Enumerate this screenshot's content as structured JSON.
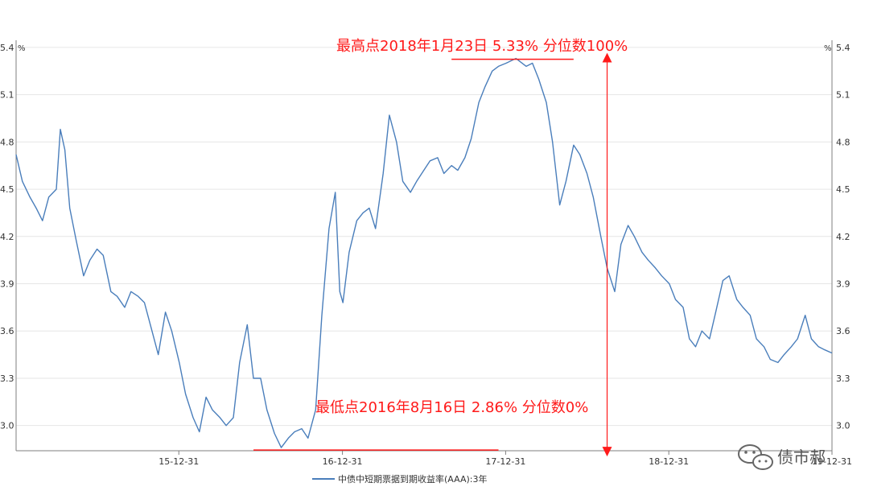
{
  "chart_data": {
    "type": "line",
    "unit_left": "%",
    "unit_right": "%",
    "ylim": [
      2.84,
      5.42
    ],
    "yticks": [
      3.0,
      3.3,
      3.6,
      3.9,
      4.2,
      4.5,
      4.8,
      5.1,
      5.4
    ],
    "ytick_labels": [
      "3.0",
      "3.3",
      "3.6",
      "3.9",
      "4.2",
      "4.5",
      "4.8",
      "5.1",
      "5.4"
    ],
    "xlim": [
      "2015-01-01",
      "2019-12-31"
    ],
    "xticks": [
      "2015-12-31",
      "2016-12-31",
      "2017-12-31",
      "2018-12-31",
      "2019-12-31"
    ],
    "xtick_labels": [
      "15-12-31",
      "16-12-31",
      "17-12-31",
      "18-12-31",
      "19-12-31"
    ],
    "color": "#4a7ebb",
    "grid": "horizontal",
    "legend": "bottom-center",
    "series": [
      {
        "name": "中债中短期票据到期收益率(AAA):3年",
        "x": [
          "2015-01-01",
          "2015-01-15",
          "2015-02-01",
          "2015-02-15",
          "2015-03-01",
          "2015-03-15",
          "2015-04-01",
          "2015-04-10",
          "2015-04-20",
          "2015-05-01",
          "2015-05-15",
          "2015-06-01",
          "2015-06-15",
          "2015-07-01",
          "2015-07-15",
          "2015-08-01",
          "2015-08-15",
          "2015-09-01",
          "2015-09-15",
          "2015-10-01",
          "2015-10-15",
          "2015-11-01",
          "2015-11-15",
          "2015-12-01",
          "2015-12-15",
          "2016-01-01",
          "2016-01-15",
          "2016-02-01",
          "2016-02-15",
          "2016-03-01",
          "2016-03-15",
          "2016-04-01",
          "2016-04-15",
          "2016-05-01",
          "2016-05-15",
          "2016-06-01",
          "2016-06-15",
          "2016-07-01",
          "2016-07-15",
          "2016-08-01",
          "2016-08-16",
          "2016-09-01",
          "2016-09-15",
          "2016-10-01",
          "2016-10-15",
          "2016-11-01",
          "2016-11-15",
          "2016-12-01",
          "2016-12-15",
          "2016-12-25",
          "2017-01-01",
          "2017-01-15",
          "2017-02-01",
          "2017-02-15",
          "2017-03-01",
          "2017-03-15",
          "2017-04-01",
          "2017-04-15",
          "2017-05-01",
          "2017-05-15",
          "2017-06-01",
          "2017-06-15",
          "2017-07-01",
          "2017-07-15",
          "2017-08-01",
          "2017-08-15",
          "2017-09-01",
          "2017-09-15",
          "2017-10-01",
          "2017-10-15",
          "2017-11-01",
          "2017-11-15",
          "2017-12-01",
          "2017-12-15",
          "2018-01-01",
          "2018-01-23",
          "2018-02-15",
          "2018-03-01",
          "2018-03-15",
          "2018-04-01",
          "2018-04-15",
          "2018-05-01",
          "2018-05-15",
          "2018-06-01",
          "2018-06-15",
          "2018-07-01",
          "2018-07-15",
          "2018-08-01",
          "2018-08-15",
          "2018-09-01",
          "2018-09-15",
          "2018-10-01",
          "2018-10-15",
          "2018-11-01",
          "2018-11-15",
          "2018-12-01",
          "2018-12-15",
          "2019-01-01",
          "2019-01-15",
          "2019-02-01",
          "2019-02-15",
          "2019-03-01",
          "2019-03-15",
          "2019-04-01",
          "2019-04-15",
          "2019-05-01",
          "2019-05-15",
          "2019-06-01",
          "2019-06-15",
          "2019-07-01",
          "2019-07-15",
          "2019-08-01",
          "2019-08-15",
          "2019-09-01",
          "2019-09-15",
          "2019-10-01",
          "2019-10-15",
          "2019-11-01",
          "2019-11-15",
          "2019-12-01",
          "2019-12-15",
          "2019-12-31"
        ],
        "values": [
          4.72,
          4.55,
          4.45,
          4.38,
          4.3,
          4.45,
          4.5,
          4.88,
          4.75,
          4.38,
          4.18,
          3.95,
          4.05,
          4.12,
          4.08,
          3.85,
          3.82,
          3.75,
          3.85,
          3.82,
          3.78,
          3.6,
          3.45,
          3.72,
          3.6,
          3.4,
          3.2,
          3.05,
          2.96,
          3.18,
          3.1,
          3.05,
          3.0,
          3.05,
          3.4,
          3.64,
          3.3,
          3.3,
          3.1,
          2.95,
          2.86,
          2.92,
          2.96,
          2.98,
          2.92,
          3.1,
          3.7,
          4.25,
          4.48,
          3.85,
          3.78,
          4.1,
          4.3,
          4.35,
          4.38,
          4.25,
          4.6,
          4.97,
          4.8,
          4.55,
          4.48,
          4.55,
          4.62,
          4.68,
          4.7,
          4.6,
          4.65,
          4.62,
          4.7,
          4.82,
          5.05,
          5.15,
          5.25,
          5.28,
          5.3,
          5.33,
          5.28,
          5.3,
          5.2,
          5.05,
          4.8,
          4.4,
          4.55,
          4.78,
          4.72,
          4.6,
          4.45,
          4.2,
          4.0,
          3.85,
          4.15,
          4.27,
          4.2,
          4.1,
          4.05,
          4.0,
          3.95,
          3.9,
          3.8,
          3.75,
          3.55,
          3.5,
          3.6,
          3.55,
          3.72,
          3.92,
          3.95,
          3.8,
          3.75,
          3.7,
          3.55,
          3.5,
          3.42,
          3.4,
          3.45,
          3.5,
          3.55,
          3.7,
          3.55,
          3.5,
          3.48,
          3.46
        ]
      }
    ],
    "annotations": [
      {
        "text": "最高点2018年1月23日 5.33%  分位数100%",
        "x": "2018-01-23",
        "y": 5.33,
        "marker_from": "2017-09-01",
        "marker_to": "2018-06-01"
      },
      {
        "text": "最低点2016年8月16日 2.86%   分位数0%",
        "x": "2016-08-16",
        "y": 2.86,
        "marker_from": "2016-06-15",
        "marker_to": "2017-12-15"
      }
    ],
    "range_arrow": {
      "x": "2018-08-15",
      "from": 2.86,
      "to": 5.33
    }
  },
  "watermark": {
    "text": "债市郝"
  }
}
